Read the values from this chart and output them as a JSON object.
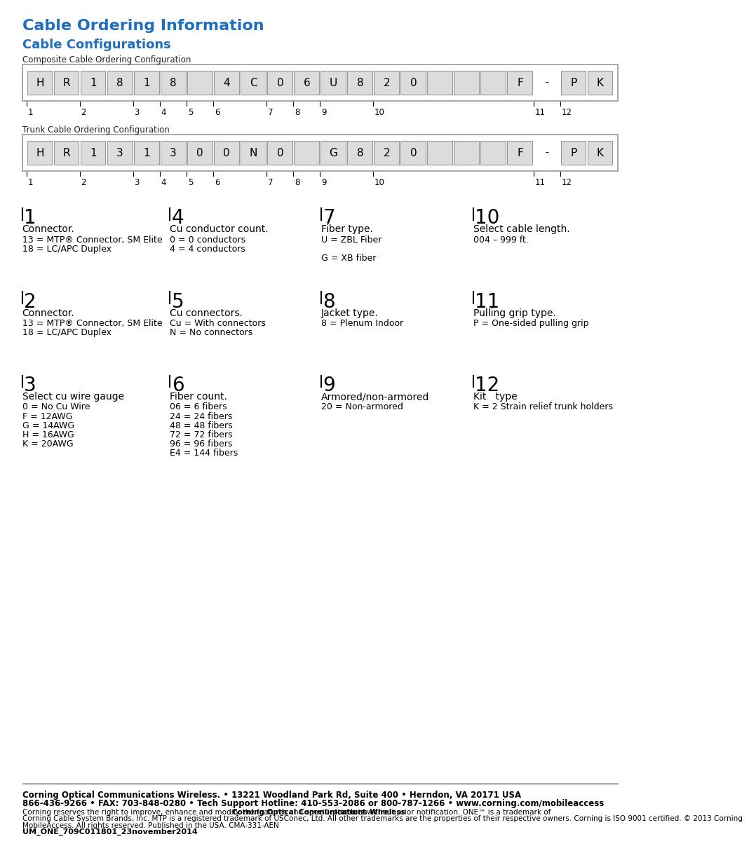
{
  "title": "Cable Ordering Information",
  "subtitle": "Cable Configurations",
  "title_color": "#1F6FBF",
  "subtitle_color": "#1F6FBF",
  "composite_label": "Composite Cable Ordering Configuration",
  "trunk_label": "Trunk Cable Ordering Configuration",
  "composite_cells": [
    "H",
    "R",
    "1",
    "8",
    "1",
    "8",
    " ",
    "4",
    "C",
    "0",
    "6",
    "U",
    "8",
    "2",
    "0",
    " ",
    " ",
    " ",
    "F",
    "-",
    "P",
    "K"
  ],
  "trunk_cells": [
    "H",
    "R",
    "1",
    "3",
    "1",
    "3",
    "0",
    "0",
    "N",
    "0",
    " ",
    "G",
    "8",
    "2",
    "0",
    " ",
    " ",
    " ",
    "F",
    "-",
    "P",
    "K"
  ],
  "cell_labels_composite": [
    "1",
    "",
    "2",
    "",
    "3",
    "4",
    "5",
    "6",
    "",
    "7",
    "8",
    "9",
    "",
    "10",
    "",
    "",
    "",
    "",
    "",
    "11",
    "12"
  ],
  "cell_labels_trunk": [
    "1",
    "",
    "2",
    "",
    "3",
    "4",
    "5",
    "6",
    "",
    "7",
    "8",
    "9",
    "",
    "10",
    "",
    "",
    "",
    "",
    "",
    "11",
    "12"
  ],
  "col1_header": "1",
  "col1_title": "Connector.",
  "col1_items": [
    "13 = MTP® Connector, SM Elite",
    "18 = LC/APC Duplex"
  ],
  "col2_header": "4",
  "col2_title": "Cu conductor count.",
  "col2_items": [
    "0 = 0 conductors",
    "4 = 4 conductors"
  ],
  "col3_header": "7",
  "col3_title": "Fiber type.",
  "col3_items": [
    "U = ZBL Fiber",
    "",
    "G = XB fiber"
  ],
  "col4_header": "10",
  "col4_title": "Select cable length.",
  "col4_items": [
    "004 – 999 ft."
  ],
  "row2_col1_header": "2",
  "row2_col1_title": "Connector.",
  "row2_col1_items": [
    "13 = MTP® Connector, SM Elite",
    "18 = LC/APC Duplex"
  ],
  "row2_col2_header": "5",
  "row2_col2_title": "Cu connectors.",
  "row2_col2_items": [
    "Cu = With connectors",
    "N = No connectors"
  ],
  "row2_col3_header": "8",
  "row2_col3_title": "Jacket type.",
  "row2_col3_items": [
    "8 = Plenum Indoor"
  ],
  "row2_col4_header": "11",
  "row2_col4_title": "Pulling grip type.",
  "row2_col4_items": [
    "P = One-sided pulling grip"
  ],
  "row3_col1_header": "3",
  "row3_col1_title": "Select cu wire gauge",
  "row3_col1_items": [
    "0 = No Cu Wire",
    "F = 12AWG",
    "G = 14AWG",
    "H = 16AWG",
    "K = 20AWG"
  ],
  "row3_col2_header": "6",
  "row3_col2_title": "Fiber count.",
  "row3_col2_items": [
    "06 = 6 fibers",
    "24 = 24 fibers",
    "48 = 48 fibers",
    "72 = 72 fibers",
    "96 = 96 fibers",
    "E4 = 144 fibers"
  ],
  "row3_col3_header": "9",
  "row3_col3_title": "Armored/non-armored",
  "row3_col3_items": [
    "20 = Non-armored"
  ],
  "row3_col4_header": "12",
  "row3_col4_title": "Kit   type",
  "row3_col4_items": [
    "K = 2 Strain relief trunk holders"
  ],
  "footer_line1": "Corning Optical Communications Wireless. • 13221 Woodland Park Rd, Suite 400 • Herndon, VA 20171 USA",
  "footer_line2": "866-436-9266 • FAX: 703-848-0280 • Tech Support Hotline: 410-553-2086 or 800-787-1266 • www.corning.com/mobileaccess",
  "footer_line3a": "Corning reserves the right to improve, enhance and modify the features and specifications of ",
  "footer_line3b": "Corning Optical Communications Wireless",
  "footer_line3c": " products without prior notification. ONE™ is a trademark of",
  "footer_line4": "Corning Cable System Brands, Inc. MTP is a registered trademark of USConec, Ltd. All other trademarks are the properties of their respective owners. Corning is ISO 9001 certified. © 2013 Corning",
  "footer_line5": "MobileAccess. All rights reserved. Published in the USA. CMA-331-AEN",
  "footer_line6": "UM_ONE_709C011801_23november2014",
  "bg_color": "#FFFFFF",
  "cell_bg": "#DCDCDC",
  "cell_border": "#999999",
  "box_border": "#999999"
}
